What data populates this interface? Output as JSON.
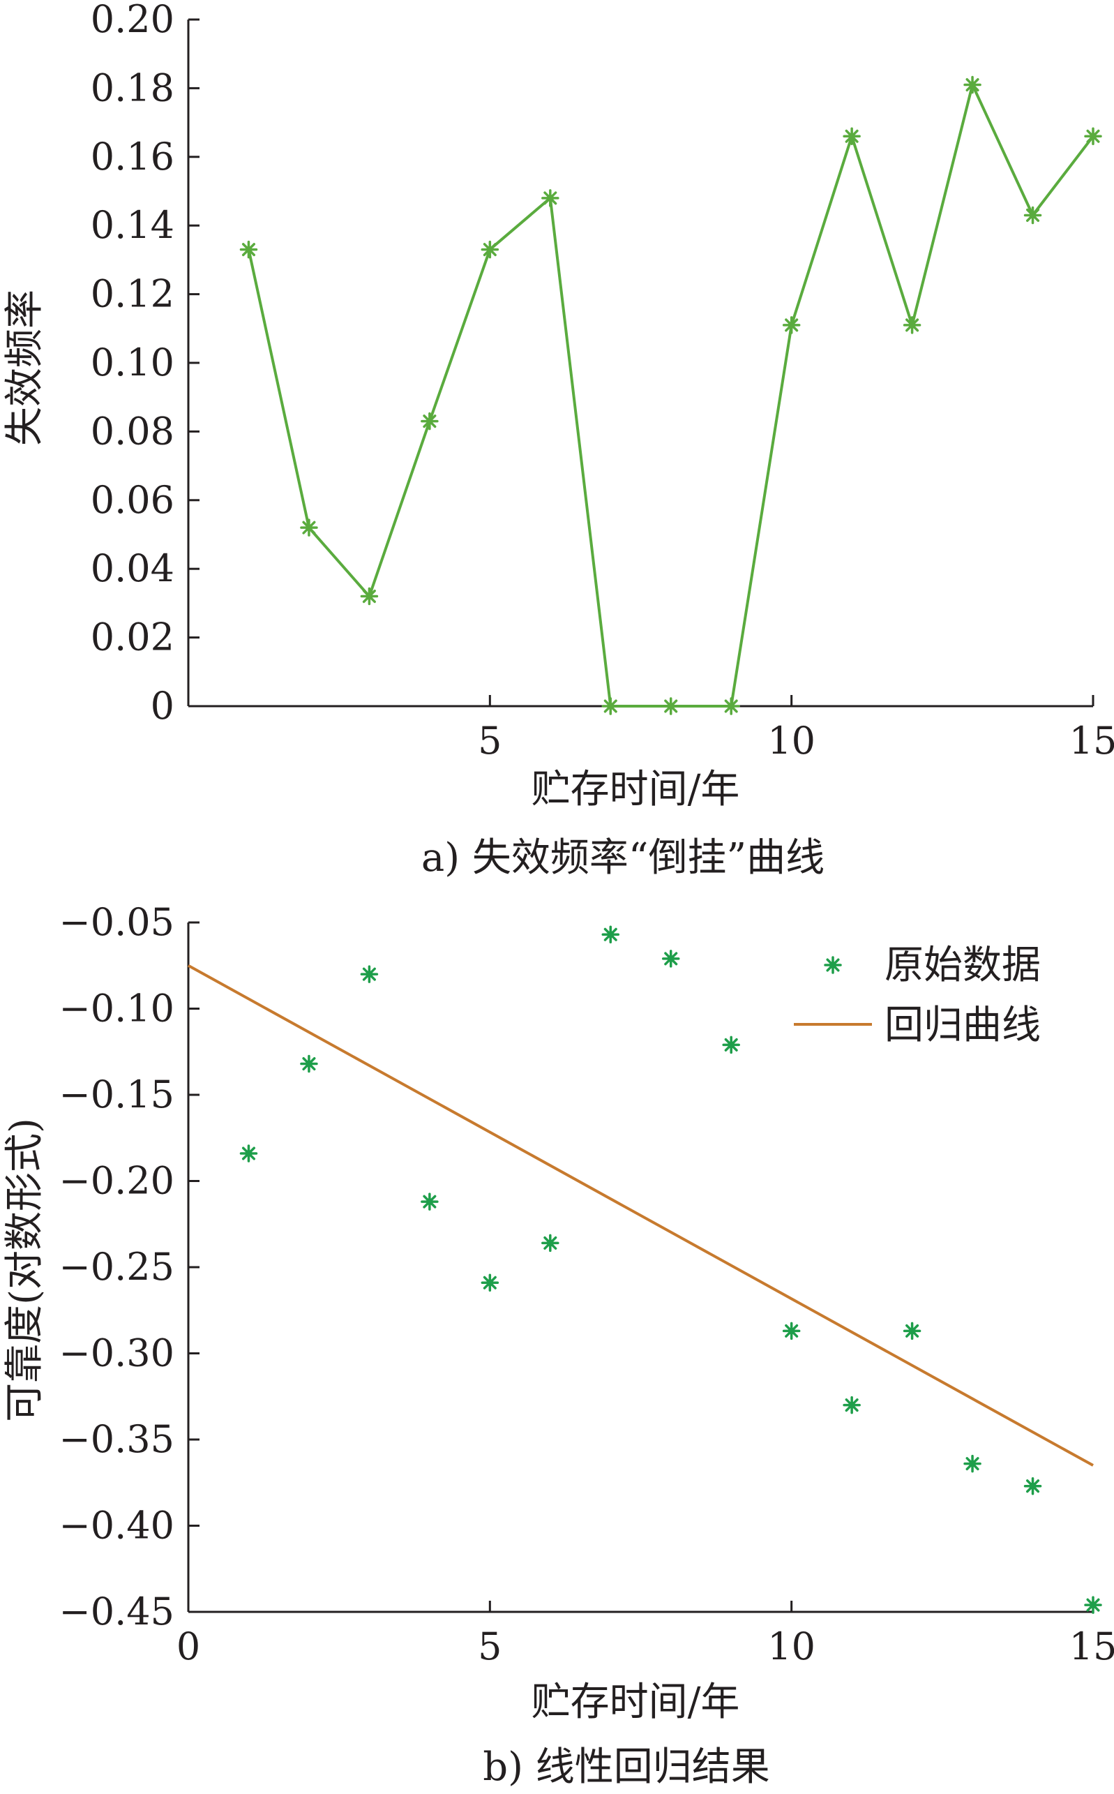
{
  "colors": {
    "line_a": "#5aab3e",
    "markers_b": "#1e9e4a",
    "regression": "#c77a2e",
    "axis": "#231f20"
  },
  "chart_data": [
    {
      "type": "line",
      "caption": "a) 失效频率“倒挂”曲线",
      "xlabel": "贮存时间/年",
      "ylabel": "失效频率",
      "xlim": [
        0,
        15
      ],
      "ylim": [
        0,
        0.2
      ],
      "xticks": [
        "5",
        "10",
        "15"
      ],
      "yticks": [
        "0",
        "0.02",
        "0.04",
        "0.06",
        "0.08",
        "0.10",
        "0.12",
        "0.14",
        "0.16",
        "0.18",
        "0.20"
      ],
      "grid": false,
      "marker": "asterisk",
      "series": [
        {
          "x": [
            1,
            2,
            3,
            4,
            5,
            6,
            7,
            8,
            9,
            10,
            11,
            12,
            13,
            14,
            15
          ],
          "y": [
            0.133,
            0.052,
            0.032,
            0.083,
            0.133,
            0.148,
            0,
            0,
            0,
            0.111,
            0.166,
            0.111,
            0.181,
            0.143,
            0.166
          ]
        }
      ]
    },
    {
      "type": "scatter",
      "caption": "b) 线性回归结果",
      "xlabel": "贮存时间/年",
      "ylabel": "可靠度(对数形式)",
      "xlim": [
        0,
        15
      ],
      "ylim": [
        -0.45,
        -0.05
      ],
      "xticks": [
        "0",
        "5",
        "10",
        "15"
      ],
      "yticks": [
        "−0.45",
        "−0.40",
        "−0.35",
        "−0.30",
        "−0.25",
        "−0.20",
        "−0.15",
        "−0.10",
        "−0.05"
      ],
      "grid": false,
      "legend_position": "top-right",
      "series": [
        {
          "name": "原始数据",
          "kind": "scatter",
          "x": [
            1,
            2,
            3,
            4,
            5,
            6,
            7,
            8,
            9,
            10,
            11,
            12,
            13,
            14,
            15
          ],
          "y": [
            -0.184,
            -0.132,
            -0.08,
            -0.212,
            -0.259,
            -0.236,
            -0.057,
            -0.071,
            -0.121,
            -0.287,
            -0.33,
            -0.287,
            -0.364,
            -0.377,
            -0.446
          ]
        },
        {
          "name": "回归曲线",
          "kind": "line",
          "x": [
            0,
            15
          ],
          "y": [
            -0.075,
            -0.365
          ]
        }
      ]
    }
  ]
}
